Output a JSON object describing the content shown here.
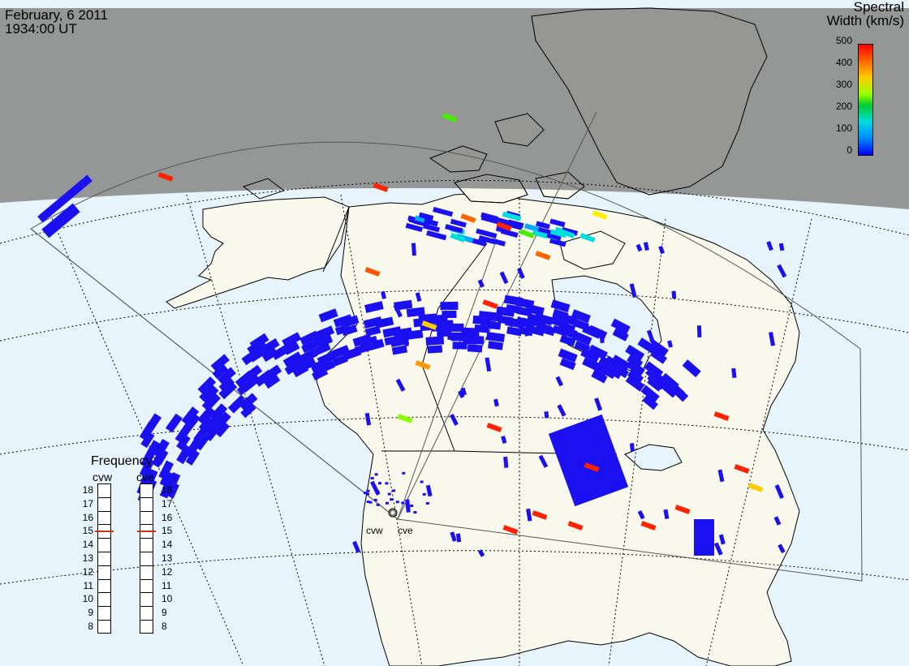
{
  "header": {
    "date": "February, 6 2011",
    "time": "1934:00 UT"
  },
  "colorbar": {
    "title_line1": "Spectral",
    "title_line2": "Width (km/s)",
    "ticks": [
      "500",
      "400",
      "300",
      "200",
      "100",
      "0"
    ],
    "colors": [
      "#ff0000",
      "#ff6600",
      "#ffcc00",
      "#99ff00",
      "#00cc33",
      "#00dddd",
      "#0088ff",
      "#0000ff"
    ]
  },
  "frequency_panel": {
    "title": "Frequency",
    "radars": [
      {
        "name": "cvw",
        "selected": "15"
      },
      {
        "name": "cve",
        "selected": "15"
      }
    ],
    "values": [
      "18",
      "17",
      "16",
      "15",
      "14",
      "13",
      "12",
      "11",
      "10",
      "9",
      "8"
    ]
  },
  "radar_labels": {
    "west": "cvw",
    "east": "cve"
  },
  "colors": {
    "ocean": "#e8f4fc",
    "land": "#f8f8ec",
    "night": "#909090",
    "echo_blue": "#1a10f0",
    "marker": "#cc3311"
  }
}
